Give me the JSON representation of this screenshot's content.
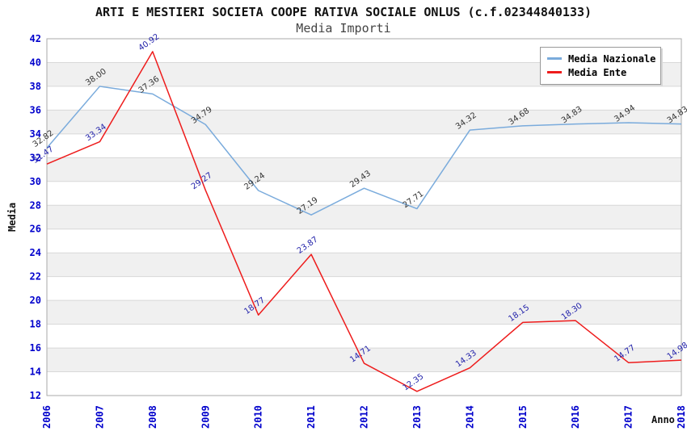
{
  "header": {
    "title": "ARTI E MESTIERI SOCIETA COOPE RATIVA SOCIALE ONLUS (c.f.02344840133)",
    "subtitle": "Media Importi"
  },
  "axes": {
    "y_label": "Media",
    "x_label": "Anno"
  },
  "legend": {
    "items": [
      {
        "label": "Media Nazionale",
        "color": "#7aabdc"
      },
      {
        "label": "Media Ente",
        "color": "#ee1c1c"
      }
    ]
  },
  "chart_data": {
    "type": "line",
    "title": "ARTI E MESTIERI SOCIETA COOPE RATIVA SOCIALE ONLUS (c.f.02344840133)",
    "subtitle": "Media Importi",
    "xlabel": "Anno",
    "ylabel": "Media",
    "x": [
      2006,
      2007,
      2008,
      2009,
      2010,
      2011,
      2012,
      2013,
      2014,
      2015,
      2016,
      2017,
      2018
    ],
    "series": [
      {
        "name": "Media Nazionale",
        "color": "#7aabdc",
        "label_color": "#333333",
        "values": [
          32.82,
          38.0,
          37.36,
          34.79,
          29.24,
          27.19,
          29.43,
          27.71,
          34.32,
          34.68,
          34.83,
          34.94,
          34.83
        ]
      },
      {
        "name": "Media Ente",
        "color": "#ee1c1c",
        "label_color": "#2222aa",
        "values": [
          31.47,
          33.34,
          40.92,
          29.27,
          18.77,
          23.87,
          14.71,
          12.35,
          14.33,
          18.15,
          18.3,
          14.77,
          14.98
        ]
      }
    ],
    "ylim": [
      12,
      42
    ],
    "ytick_step": 2,
    "grid": true,
    "legend_position": "top-right",
    "band_colors": [
      "#ffffff",
      "#f0f0f0"
    ],
    "gridline_color": "#d8d8d8",
    "border_color": "#aaaaaa",
    "tick_label_color": "#0000cc"
  }
}
